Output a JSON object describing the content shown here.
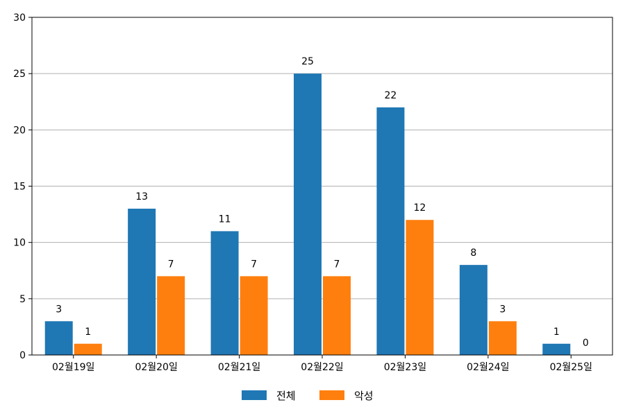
{
  "chart_data": {
    "type": "bar",
    "categories": [
      "02월19일",
      "02월20일",
      "02월21일",
      "02월22일",
      "02월23일",
      "02월24일",
      "02월25일"
    ],
    "series": [
      {
        "name": "전체",
        "color": "#1f77b4",
        "values": [
          3,
          13,
          11,
          25,
          22,
          8,
          1
        ]
      },
      {
        "name": "악성",
        "color": "#ff7f0e",
        "values": [
          1,
          7,
          7,
          7,
          12,
          3,
          0
        ]
      }
    ],
    "ylim": [
      0,
      30
    ],
    "yticks": [
      0,
      5,
      10,
      15,
      20,
      25,
      30
    ],
    "grid": "horizontal",
    "legend": "bottom-center"
  }
}
